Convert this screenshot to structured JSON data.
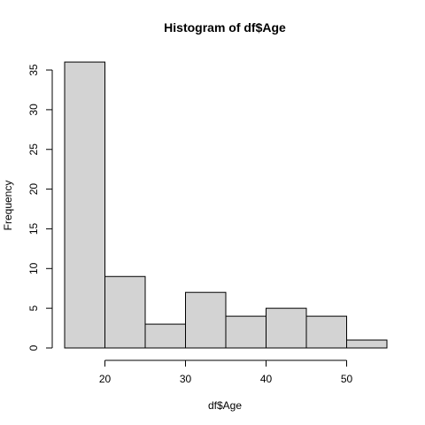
{
  "chart_data": {
    "type": "bar",
    "title": "Histogram of df$Age",
    "xlabel": "df$Age",
    "ylabel": "Frequency",
    "bins": [
      {
        "start": 15,
        "end": 20,
        "count": 36
      },
      {
        "start": 20,
        "end": 25,
        "count": 9
      },
      {
        "start": 25,
        "end": 30,
        "count": 3
      },
      {
        "start": 30,
        "end": 35,
        "count": 7
      },
      {
        "start": 35,
        "end": 40,
        "count": 4
      },
      {
        "start": 40,
        "end": 45,
        "count": 5
      },
      {
        "start": 45,
        "end": 50,
        "count": 4
      },
      {
        "start": 50,
        "end": 55,
        "count": 1
      }
    ],
    "xlim": [
      15,
      55
    ],
    "ylim": [
      0,
      36
    ],
    "x_ticks": [
      20,
      30,
      40,
      50
    ],
    "y_ticks": [
      0,
      5,
      10,
      15,
      20,
      25,
      30,
      35
    ],
    "grid": false,
    "colors": {
      "bar_fill": "#d3d3d3",
      "bar_stroke": "#000000"
    }
  }
}
